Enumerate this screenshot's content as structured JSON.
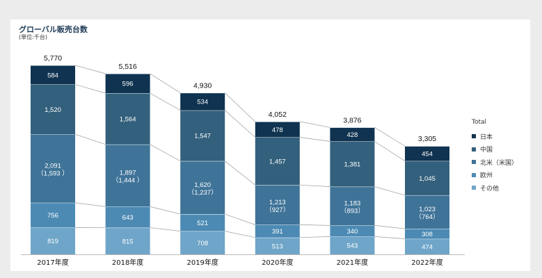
{
  "header": {
    "title": "グローバル販売台数",
    "unit": "(単位:千台)"
  },
  "colors": {
    "日本": "#0f3350",
    "中国": "#33607c",
    "北米（米国）": "#3f7398",
    "欧州": "#4c8ab4",
    "その他": "#6ea5c8"
  },
  "chart_data": {
    "type": "bar",
    "stacked": true,
    "categories": [
      "2017年度",
      "2018年度",
      "2019年度",
      "2020年度",
      "2021年度",
      "2022年度"
    ],
    "totals": [
      "5,770",
      "5,516",
      "4,930",
      "4,052",
      "3,876",
      "3,305"
    ],
    "total_values": [
      5770,
      5516,
      4930,
      4052,
      3876,
      3305
    ],
    "series": [
      {
        "name": "その他",
        "values": [
          819,
          815,
          708,
          513,
          543,
          474
        ],
        "labels": [
          "819",
          "815",
          "708",
          "513",
          "543",
          "474"
        ]
      },
      {
        "name": "欧州",
        "values": [
          756,
          643,
          521,
          391,
          340,
          308
        ],
        "labels": [
          "756",
          "643",
          "521",
          "391",
          "340",
          "308"
        ]
      },
      {
        "name": "北米（米国）",
        "values": [
          2091,
          1897,
          1620,
          1213,
          1183,
          1023
        ],
        "labels": [
          "2,091",
          "1,897",
          "1,620",
          "1,213",
          "1,183",
          "1,023"
        ],
        "sublabels": [
          "（1,593 ）",
          "（1,444 ）",
          "（1,237）",
          "（927）",
          "（893）",
          "（764）"
        ]
      },
      {
        "name": "中国",
        "values": [
          1520,
          1564,
          1547,
          1457,
          1381,
          1045
        ],
        "labels": [
          "1,520",
          "1,564",
          "1,547",
          "1,457",
          "1,381",
          "1,045"
        ]
      },
      {
        "name": "日本",
        "values": [
          584,
          596,
          534,
          478,
          428,
          454
        ],
        "labels": [
          "584",
          "596",
          "534",
          "478",
          "428",
          "454"
        ]
      }
    ],
    "legend": {
      "title": "Total",
      "placement": "right",
      "entries": [
        "日本",
        "中国",
        "北米（米国）",
        "欧州",
        "その他"
      ]
    },
    "ylim": [
      0,
      5770
    ]
  }
}
